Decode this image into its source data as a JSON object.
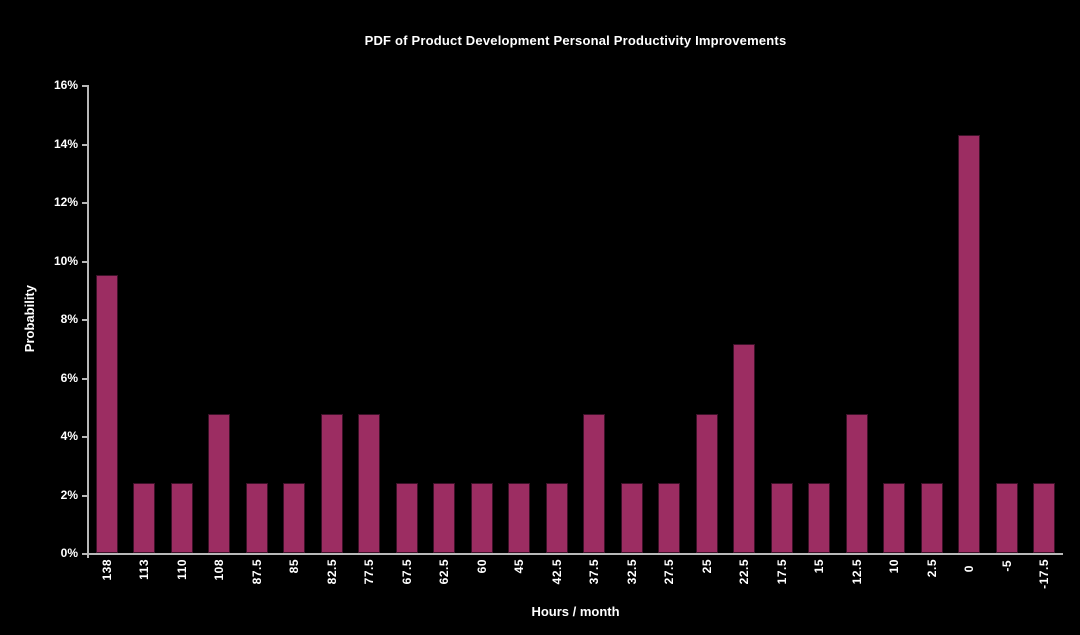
{
  "chart_data": {
    "type": "bar",
    "title": "PDF of Product Development Personal Productivity Improvements",
    "xlabel": "Hours / month",
    "ylabel": "Probability",
    "categories": [
      "138",
      "113",
      "110",
      "108",
      "87.5",
      "85",
      "82.5",
      "77.5",
      "67.5",
      "62.5",
      "60",
      "45",
      "42.5",
      "37.5",
      "32.5",
      "27.5",
      "25",
      "22.5",
      "17.5",
      "15",
      "12.5",
      "10",
      "2.5",
      "0",
      "-5",
      "-17.5"
    ],
    "values": [
      9.52,
      2.38,
      2.38,
      4.76,
      2.38,
      2.38,
      4.76,
      4.76,
      2.38,
      2.38,
      2.38,
      2.38,
      2.38,
      4.76,
      2.38,
      2.38,
      4.76,
      7.14,
      2.38,
      2.38,
      4.76,
      2.38,
      2.38,
      14.29,
      2.38,
      2.38
    ],
    "ylim": [
      0,
      16
    ],
    "ytick_step": 2,
    "ytick_labels": [
      "0%",
      "2%",
      "4%",
      "6%",
      "8%",
      "10%",
      "12%",
      "14%",
      "16%"
    ],
    "grid": false,
    "legend": "none",
    "colors": {
      "background": "#000000",
      "bar_fill": "#9C2D62",
      "bar_border": "#3C1128",
      "axis": "#B8B8B8",
      "text": "#FFFFFF"
    }
  }
}
